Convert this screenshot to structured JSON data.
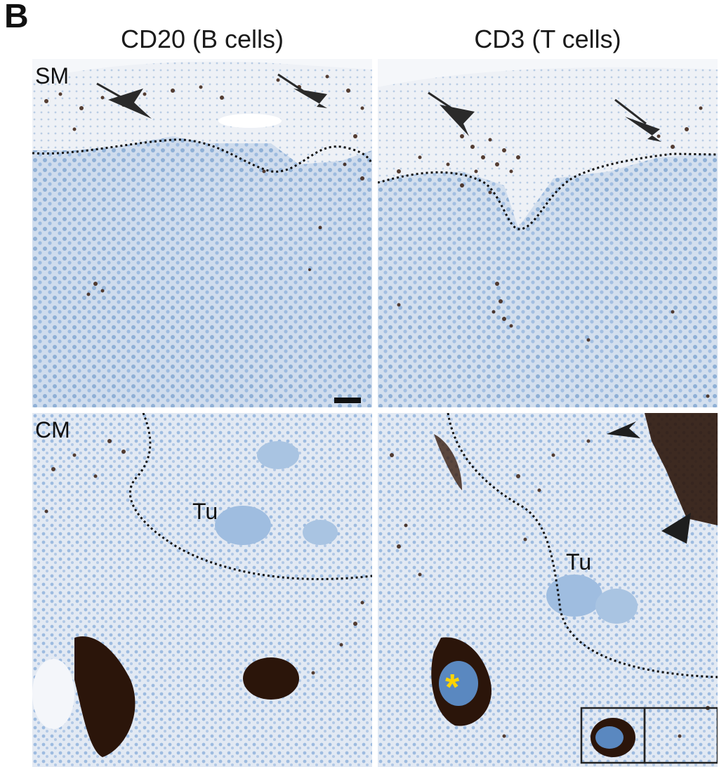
{
  "figure": {
    "panel_label": "B",
    "columns": [
      {
        "title": "CD20 (B cells)"
      },
      {
        "title": "CD3 (T cells)"
      }
    ],
    "rows": [
      {
        "label": "SM"
      },
      {
        "label": "CM"
      }
    ],
    "annotations": {
      "tumor_label": "Tu",
      "asterisk": "*"
    },
    "colors": {
      "tissue_blue": "#a9c4e2",
      "tissue_light": "#e9eef5",
      "stain_brown": "#3a1e10",
      "background": "#ffffff",
      "asterisk": "#ffd400"
    }
  }
}
